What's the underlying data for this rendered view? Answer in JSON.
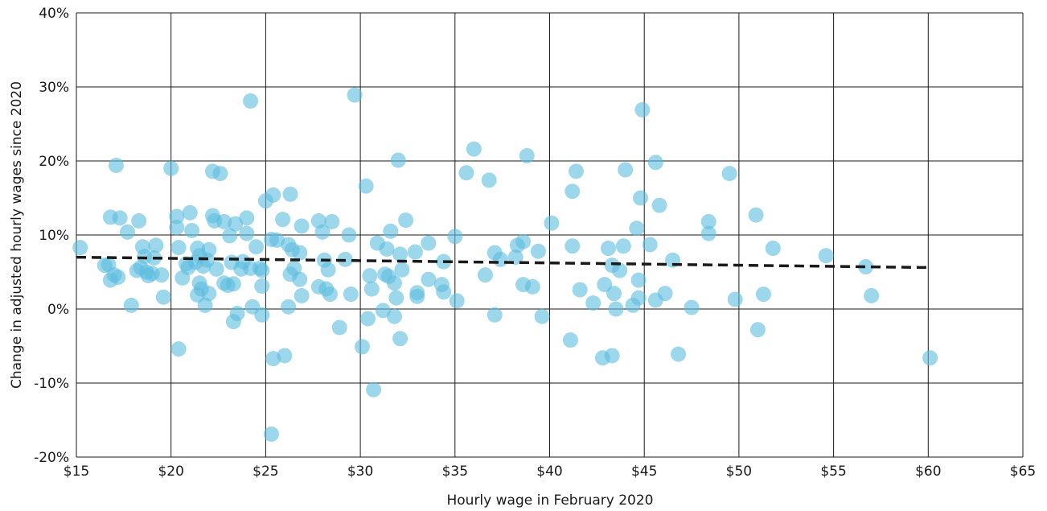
{
  "chart_data": {
    "type": "scatter",
    "xlabel": "Hourly wage in February 2020",
    "ylabel": "Change in adjusted hourly wages since 2020",
    "xlim": [
      15,
      65
    ],
    "ylim": [
      -20,
      40
    ],
    "x_ticks": [
      15,
      20,
      25,
      30,
      35,
      40,
      45,
      50,
      55,
      60,
      65
    ],
    "x_tick_labels": [
      "$15",
      "$20",
      "$25",
      "$30",
      "$35",
      "$40",
      "$45",
      "$50",
      "$55",
      "$60",
      "$65"
    ],
    "y_ticks": [
      -20,
      -10,
      0,
      10,
      20,
      30,
      40
    ],
    "y_tick_labels": [
      "-20%",
      "-10%",
      "0%",
      "10%",
      "20%",
      "30%",
      "40%"
    ],
    "grid": true,
    "point_color": "#5bbde0",
    "trend_line": {
      "x": [
        15.0,
        60.1
      ],
      "y": [
        7.0,
        5.6
      ],
      "style": "dashed",
      "color": "#1a1a1a"
    },
    "points": [
      [
        15.2,
        8.3
      ],
      [
        16.5,
        5.9
      ],
      [
        16.7,
        6.0
      ],
      [
        16.8,
        12.4
      ],
      [
        16.8,
        3.9
      ],
      [
        17.0,
        4.6
      ],
      [
        17.2,
        4.3
      ],
      [
        17.1,
        19.4
      ],
      [
        17.3,
        12.3
      ],
      [
        17.7,
        10.4
      ],
      [
        17.9,
        0.5
      ],
      [
        18.2,
        5.2
      ],
      [
        18.3,
        11.9
      ],
      [
        18.4,
        5.6
      ],
      [
        18.5,
        8.4
      ],
      [
        18.6,
        7.1
      ],
      [
        18.7,
        5.0
      ],
      [
        18.8,
        4.5
      ],
      [
        19.0,
        4.8
      ],
      [
        19.1,
        6.9
      ],
      [
        19.2,
        8.6
      ],
      [
        19.5,
        4.6
      ],
      [
        19.6,
        1.6
      ],
      [
        20.0,
        19.0
      ],
      [
        20.3,
        12.5
      ],
      [
        20.3,
        11.0
      ],
      [
        20.4,
        8.3
      ],
      [
        20.4,
        -5.4
      ],
      [
        20.6,
        4.2
      ],
      [
        20.8,
        6.1
      ],
      [
        20.9,
        5.6
      ],
      [
        21.0,
        13.0
      ],
      [
        21.1,
        10.6
      ],
      [
        21.3,
        6.3
      ],
      [
        21.4,
        1.9
      ],
      [
        21.4,
        8.2
      ],
      [
        21.5,
        3.5
      ],
      [
        21.5,
        7.2
      ],
      [
        21.6,
        2.7
      ],
      [
        21.7,
        5.8
      ],
      [
        21.8,
        0.5
      ],
      [
        21.9,
        6.6
      ],
      [
        22.0,
        8.0
      ],
      [
        22.0,
        2.1
      ],
      [
        22.2,
        12.6
      ],
      [
        22.2,
        18.6
      ],
      [
        22.3,
        11.9
      ],
      [
        22.4,
        5.4
      ],
      [
        22.6,
        18.3
      ],
      [
        22.8,
        11.8
      ],
      [
        22.8,
        3.5
      ],
      [
        23.0,
        3.2
      ],
      [
        23.1,
        9.9
      ],
      [
        23.2,
        6.3
      ],
      [
        23.3,
        3.4
      ],
      [
        23.3,
        -1.7
      ],
      [
        23.4,
        11.5
      ],
      [
        23.5,
        -0.6
      ],
      [
        23.7,
        5.4
      ],
      [
        23.8,
        6.4
      ],
      [
        24.0,
        10.2
      ],
      [
        24.0,
        12.3
      ],
      [
        24.2,
        28.1
      ],
      [
        24.2,
        5.5
      ],
      [
        24.3,
        0.3
      ],
      [
        24.5,
        8.4
      ],
      [
        24.7,
        5.5
      ],
      [
        24.8,
        5.2
      ],
      [
        24.8,
        3.1
      ],
      [
        24.8,
        -0.8
      ],
      [
        25.0,
        14.6
      ],
      [
        25.3,
        9.4
      ],
      [
        25.4,
        15.4
      ],
      [
        25.4,
        -6.7
      ],
      [
        25.3,
        -16.9
      ],
      [
        25.6,
        9.3
      ],
      [
        25.9,
        12.1
      ],
      [
        26.0,
        -6.3
      ],
      [
        26.2,
        0.3
      ],
      [
        26.2,
        8.7
      ],
      [
        26.3,
        15.5
      ],
      [
        26.3,
        4.7
      ],
      [
        26.4,
        8.0
      ],
      [
        26.5,
        5.5
      ],
      [
        26.8,
        7.6
      ],
      [
        26.8,
        4.0
      ],
      [
        26.9,
        11.2
      ],
      [
        26.9,
        1.8
      ],
      [
        27.8,
        11.9
      ],
      [
        27.8,
        3.0
      ],
      [
        28.0,
        10.4
      ],
      [
        28.1,
        6.6
      ],
      [
        28.2,
        2.7
      ],
      [
        28.3,
        5.3
      ],
      [
        28.4,
        2.0
      ],
      [
        28.5,
        11.8
      ],
      [
        28.9,
        -2.5
      ],
      [
        29.2,
        6.7
      ],
      [
        29.4,
        10.0
      ],
      [
        29.5,
        2.0
      ],
      [
        29.7,
        28.9
      ],
      [
        30.1,
        -5.1
      ],
      [
        30.3,
        16.6
      ],
      [
        30.4,
        -1.3
      ],
      [
        30.5,
        4.5
      ],
      [
        30.6,
        2.7
      ],
      [
        30.7,
        -10.9
      ],
      [
        30.9,
        8.9
      ],
      [
        31.2,
        -0.2
      ],
      [
        31.3,
        4.7
      ],
      [
        31.4,
        8.1
      ],
      [
        31.5,
        4.4
      ],
      [
        31.6,
        10.5
      ],
      [
        31.8,
        -1.0
      ],
      [
        31.8,
        3.5
      ],
      [
        31.9,
        1.5
      ],
      [
        32.0,
        20.1
      ],
      [
        32.1,
        -4.0
      ],
      [
        32.1,
        7.4
      ],
      [
        32.2,
        5.3
      ],
      [
        32.4,
        12.0
      ],
      [
        32.9,
        7.7
      ],
      [
        33.0,
        2.2
      ],
      [
        33.0,
        1.7
      ],
      [
        33.6,
        8.9
      ],
      [
        33.6,
        4.0
      ],
      [
        34.3,
        3.3
      ],
      [
        34.4,
        2.3
      ],
      [
        34.4,
        6.4
      ],
      [
        35.0,
        9.8
      ],
      [
        35.1,
        1.1
      ],
      [
        35.6,
        18.4
      ],
      [
        36.0,
        21.6
      ],
      [
        36.6,
        4.6
      ],
      [
        36.8,
        17.4
      ],
      [
        37.1,
        7.6
      ],
      [
        37.1,
        -0.8
      ],
      [
        37.4,
        6.7
      ],
      [
        38.2,
        7.0
      ],
      [
        38.3,
        8.6
      ],
      [
        38.6,
        9.1
      ],
      [
        38.6,
        3.3
      ],
      [
        38.8,
        20.7
      ],
      [
        39.1,
        3.0
      ],
      [
        39.4,
        7.8
      ],
      [
        39.6,
        -1.0
      ],
      [
        40.1,
        11.6
      ],
      [
        41.1,
        -4.2
      ],
      [
        41.2,
        15.9
      ],
      [
        41.2,
        8.5
      ],
      [
        41.4,
        18.6
      ],
      [
        41.6,
        2.6
      ],
      [
        42.3,
        0.8
      ],
      [
        42.8,
        -6.6
      ],
      [
        42.9,
        3.3
      ],
      [
        43.1,
        8.2
      ],
      [
        43.3,
        5.9
      ],
      [
        43.3,
        -6.3
      ],
      [
        43.4,
        2.1
      ],
      [
        43.5,
        0.0
      ],
      [
        43.7,
        5.2
      ],
      [
        43.9,
        8.5
      ],
      [
        44.0,
        18.8
      ],
      [
        44.4,
        0.5
      ],
      [
        44.6,
        10.9
      ],
      [
        44.7,
        3.9
      ],
      [
        44.7,
        1.5
      ],
      [
        44.8,
        15.0
      ],
      [
        44.9,
        26.9
      ],
      [
        45.3,
        8.7
      ],
      [
        45.6,
        19.8
      ],
      [
        45.6,
        1.2
      ],
      [
        45.8,
        14.0
      ],
      [
        46.1,
        2.1
      ],
      [
        46.5,
        6.6
      ],
      [
        46.8,
        -6.1
      ],
      [
        47.5,
        0.2
      ],
      [
        48.4,
        11.8
      ],
      [
        48.4,
        10.2
      ],
      [
        49.5,
        18.3
      ],
      [
        49.8,
        1.3
      ],
      [
        50.9,
        12.7
      ],
      [
        51.0,
        -2.8
      ],
      [
        51.3,
        2.0
      ],
      [
        51.8,
        8.2
      ],
      [
        54.6,
        7.2
      ],
      [
        56.7,
        5.7
      ],
      [
        57.0,
        1.8
      ],
      [
        60.1,
        -6.6
      ]
    ]
  }
}
